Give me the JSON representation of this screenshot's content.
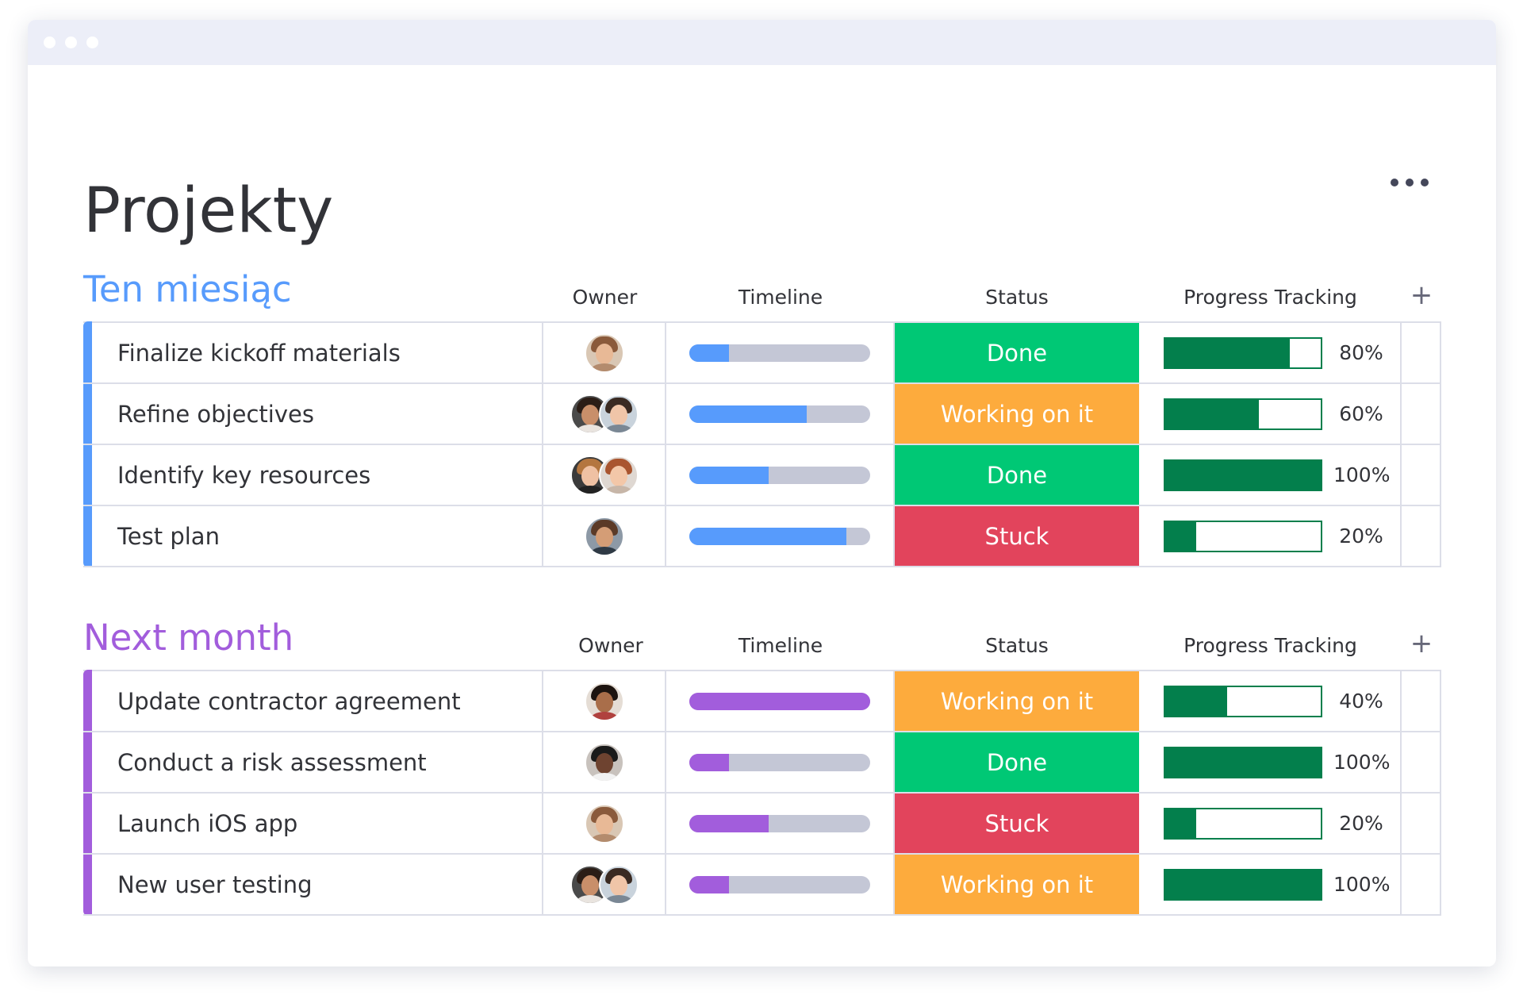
{
  "page": {
    "title": "Projekty"
  },
  "colors": {
    "done": "#00c875",
    "working": "#fdab3d",
    "stuck": "#e2445c",
    "progress": "#037f4c",
    "group1": "#579bfc",
    "group2": "#a25ddc",
    "track": "#c4c7d6"
  },
  "groups": [
    {
      "title": "Ten miesiąc",
      "color": "#579bfc",
      "columns": {
        "owner": "Owner",
        "timeline": "Timeline",
        "status": "Status",
        "progress": "Progress Tracking",
        "add": "+"
      },
      "rows": [
        {
          "name": "Finalize kickoff materials",
          "owners": 1,
          "timeline": 0.22,
          "status": "Done",
          "status_color": "#00c875",
          "progress": 0.8,
          "progress_label": "80%"
        },
        {
          "name": "Refine objectives",
          "owners": 2,
          "timeline": 0.65,
          "status": "Working on it",
          "status_color": "#fdab3d",
          "progress": 0.6,
          "progress_label": "60%"
        },
        {
          "name": "Identify key resources",
          "owners": 2,
          "timeline": 0.44,
          "status": "Done",
          "status_color": "#00c875",
          "progress": 1.0,
          "progress_label": "100%"
        },
        {
          "name": "Test plan",
          "owners": 1,
          "timeline": 0.87,
          "status": "Stuck",
          "status_color": "#e2445c",
          "progress": 0.2,
          "progress_label": "20%"
        }
      ]
    },
    {
      "title": "Next month",
      "color": "#a25ddc",
      "columns": {
        "owner": "Owner",
        "timeline": "Timeline",
        "status": "Status",
        "progress": "Progress Tracking",
        "add": "+"
      },
      "rows": [
        {
          "name": "Update contractor agreement",
          "owners": 1,
          "timeline": 1.0,
          "status": "Working on it",
          "status_color": "#fdab3d",
          "progress": 0.4,
          "progress_label": "40%"
        },
        {
          "name": "Conduct a risk assessment",
          "owners": 1,
          "timeline": 0.22,
          "status": "Done",
          "status_color": "#00c875",
          "progress": 1.0,
          "progress_label": "100%"
        },
        {
          "name": "Launch iOS app",
          "owners": 1,
          "timeline": 0.44,
          "status": "Stuck",
          "status_color": "#e2445c",
          "progress": 0.2,
          "progress_label": "20%"
        },
        {
          "name": "New user testing",
          "owners": 2,
          "timeline": 0.22,
          "status": "Working on it",
          "status_color": "#fdab3d",
          "progress": 1.0,
          "progress_label": "100%"
        }
      ]
    }
  ]
}
